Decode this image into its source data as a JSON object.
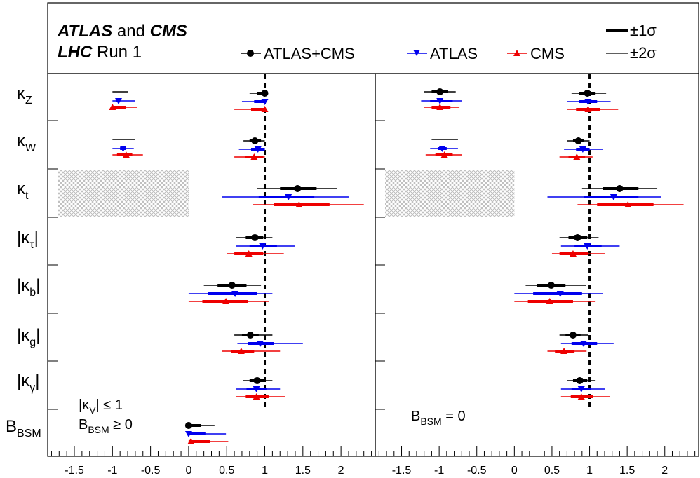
{
  "header": {
    "line1_a": "ATLAS",
    "line1_b": " and ",
    "line1_c": "CMS",
    "line2_a": "LHC",
    "line2_b": " Run 1",
    "legend": {
      "combined": "ATLAS+CMS",
      "atlas": "ATLAS",
      "cms": "CMS",
      "one_sigma": "±1σ",
      "two_sigma": "±2σ"
    }
  },
  "colors": {
    "combined": "#000000",
    "atlas": "#0000ee",
    "cms": "#ee0000",
    "hatch": "#bbbbbb"
  },
  "row_labels": [
    {
      "main": "κ",
      "sub": "Z",
      "abs": false
    },
    {
      "main": "κ",
      "sub": "W",
      "abs": false
    },
    {
      "main": "κ",
      "sub": "t",
      "abs": false
    },
    {
      "main": "κ",
      "sub": "τ",
      "abs": true
    },
    {
      "main": "κ",
      "sub": "b",
      "abs": true
    },
    {
      "main": "κ",
      "sub": "g",
      "abs": true
    },
    {
      "main": "κ",
      "sub": "γ",
      "abs": true
    },
    {
      "main": "B",
      "sub": "BSM",
      "abs": false
    }
  ],
  "panels": [
    {
      "annotation_lines": [
        {
          "pre": "|κ",
          "sub": "V",
          "post": "| ≤ 1"
        },
        {
          "pre": "B",
          "sub": "BSM",
          "post": " ≥ 0"
        }
      ]
    },
    {
      "annotation_lines": [
        {
          "pre": "B",
          "sub": "BSM",
          "post": " = 0"
        }
      ]
    }
  ],
  "chart_data": [
    {
      "type": "scatter",
      "xlim": [
        -1.85,
        2.45
      ],
      "x_ticks": [
        "-1.5",
        "-1",
        "-0.5",
        "0",
        "0.5",
        "1",
        "1.5",
        "2"
      ],
      "x_tick_values": [
        -1.5,
        -1,
        -0.5,
        0,
        0.5,
        1,
        1.5,
        2
      ],
      "reference_line": 1,
      "excluded_band": {
        "row": "kappa_t",
        "x": [
          -1.85,
          0
        ]
      },
      "rows": [
        {
          "param": "kappa_Z",
          "secondary_minimum": {
            "combined": {
              "val": null,
              "s1": null,
              "s2": [
                -1.0,
                -0.8
              ]
            },
            "atlas": {
              "val": -0.92,
              "s1": [
                -0.95,
                -0.9
              ],
              "s2": [
                -1.0,
                -0.7
              ]
            },
            "cms": {
              "val": -1.0,
              "s1": [
                -1.0,
                -0.82
              ],
              "s2": [
                -1.02,
                -0.68
              ]
            }
          },
          "combined": {
            "val": 1.0,
            "s1": [
              0.9,
              1.0
            ],
            "s2": [
              0.8,
              1.0
            ]
          },
          "atlas": {
            "val": 1.0,
            "s1": [
              0.86,
              1.0
            ],
            "s2": [
              0.7,
              1.0
            ]
          },
          "cms": {
            "val": 1.0,
            "s1": [
              0.82,
              1.0
            ],
            "s2": [
              0.6,
              1.0
            ]
          }
        },
        {
          "param": "kappa_W",
          "secondary_minimum": {
            "combined": {
              "val": null,
              "s1": null,
              "s2": [
                -1.0,
                -0.7
              ]
            },
            "atlas": {
              "val": -0.86,
              "s1": [
                -0.9,
                -0.82
              ],
              "s2": [
                -1.0,
                -0.72
              ]
            },
            "cms": {
              "val": -0.82,
              "s1": [
                -0.94,
                -0.74
              ],
              "s2": [
                -1.0,
                -0.6
              ]
            }
          },
          "combined": {
            "val": 0.87,
            "s1": [
              0.8,
              0.95
            ],
            "s2": [
              0.72,
              1.0
            ]
          },
          "atlas": {
            "val": 0.91,
            "s1": [
              0.82,
              1.0
            ],
            "s2": [
              0.66,
              1.0
            ]
          },
          "cms": {
            "val": 0.86,
            "s1": [
              0.74,
              0.98
            ],
            "s2": [
              0.6,
              1.0
            ]
          }
        },
        {
          "param": "kappa_t",
          "combined": {
            "val": 1.43,
            "s1": [
              1.2,
              1.68
            ],
            "s2": [
              0.9,
              1.95
            ]
          },
          "atlas": {
            "val": 1.31,
            "s1": [
              0.92,
              1.65
            ],
            "s2": [
              0.44,
              2.1
            ]
          },
          "cms": {
            "val": 1.45,
            "s1": [
              1.12,
              1.85
            ],
            "s2": [
              0.84,
              2.3
            ]
          }
        },
        {
          "param": "kappa_tau",
          "combined": {
            "val": 0.87,
            "s1": [
              0.75,
              0.98
            ],
            "s2": [
              0.62,
              1.1
            ]
          },
          "atlas": {
            "val": 0.97,
            "s1": [
              0.8,
              1.16
            ],
            "s2": [
              0.62,
              1.4
            ]
          },
          "cms": {
            "val": 0.79,
            "s1": [
              0.6,
              0.98
            ],
            "s2": [
              0.5,
              1.25
            ]
          }
        },
        {
          "param": "kappa_b",
          "combined": {
            "val": 0.57,
            "s1": [
              0.38,
              0.76
            ],
            "s2": [
              0.2,
              0.95
            ]
          },
          "atlas": {
            "val": 0.61,
            "s1": [
              0.25,
              0.9
            ],
            "s2": [
              0.0,
              1.1
            ]
          },
          "cms": {
            "val": 0.49,
            "s1": [
              0.18,
              0.78
            ],
            "s2": [
              0.0,
              1.05
            ]
          }
        },
        {
          "param": "kappa_g",
          "combined": {
            "val": 0.81,
            "s1": [
              0.7,
              0.92
            ],
            "s2": [
              0.6,
              1.1
            ]
          },
          "atlas": {
            "val": 0.94,
            "s1": [
              0.78,
              1.12
            ],
            "s2": [
              0.64,
              1.5
            ]
          },
          "cms": {
            "val": 0.69,
            "s1": [
              0.56,
              0.86
            ],
            "s2": [
              0.44,
              1.2
            ]
          }
        },
        {
          "param": "kappa_gamma",
          "combined": {
            "val": 0.9,
            "s1": [
              0.8,
              1.0
            ],
            "s2": [
              0.71,
              1.1
            ]
          },
          "atlas": {
            "val": 0.89,
            "s1": [
              0.76,
              1.02
            ],
            "s2": [
              0.62,
              1.2
            ]
          },
          "cms": {
            "val": 0.89,
            "s1": [
              0.75,
              1.05
            ],
            "s2": [
              0.62,
              1.27
            ]
          }
        },
        {
          "param": "B_BSM",
          "combined": {
            "val": 0.0,
            "s1": [
              0.0,
              0.16
            ],
            "s2": [
              0.0,
              0.34
            ]
          },
          "atlas": {
            "val": 0.0,
            "s1": [
              0.0,
              0.22
            ],
            "s2": [
              0.0,
              0.49
            ]
          },
          "cms": {
            "val": 0.03,
            "s1": [
              0.0,
              0.28
            ],
            "s2": [
              0.0,
              0.52
            ]
          }
        }
      ]
    },
    {
      "type": "scatter",
      "xlim": [
        -1.85,
        2.45
      ],
      "x_ticks": [
        "-1.5",
        "-1",
        "-0.5",
        "0",
        "0.5",
        "1",
        "1.5",
        "2"
      ],
      "x_tick_values": [
        -1.5,
        -1,
        -0.5,
        0,
        0.5,
        1,
        1.5,
        2
      ],
      "reference_line": 1,
      "excluded_band": {
        "row": "kappa_t",
        "x": [
          -1.85,
          0
        ]
      },
      "rows": [
        {
          "param": "kappa_Z",
          "secondary_minimum": {
            "combined": {
              "val": -0.99,
              "s1": [
                -1.1,
                -0.88
              ],
              "s2": [
                -1.2,
                -0.78
              ]
            },
            "atlas": {
              "val": -0.99,
              "s1": [
                -1.12,
                -0.82
              ],
              "s2": [
                -1.24,
                -0.7
              ]
            },
            "cms": {
              "val": -0.99,
              "s1": [
                -1.1,
                -0.85
              ],
              "s2": [
                -1.2,
                -0.73
              ]
            }
          },
          "combined": {
            "val": 0.97,
            "s1": [
              0.86,
              1.08
            ],
            "s2": [
              0.76,
              1.22
            ]
          },
          "atlas": {
            "val": 0.98,
            "s1": [
              0.86,
              1.1
            ],
            "s2": [
              0.7,
              1.28
            ]
          },
          "cms": {
            "val": 0.98,
            "s1": [
              0.82,
              1.14
            ],
            "s2": [
              0.7,
              1.38
            ]
          }
        },
        {
          "param": "kappa_W",
          "secondary_minimum": {
            "combined": {
              "val": null,
              "s1": null,
              "s2": [
                -1.1,
                -0.75
              ]
            },
            "atlas": {
              "val": -0.96,
              "s1": [
                -1.02,
                -0.9
              ],
              "s2": [
                -1.12,
                -0.75
              ]
            },
            "cms": {
              "val": -0.93,
              "s1": [
                -1.05,
                -0.82
              ],
              "s2": [
                -1.18,
                -0.7
              ]
            }
          },
          "combined": {
            "val": 0.85,
            "s1": [
              0.78,
              0.92
            ],
            "s2": [
              0.7,
              1.0
            ]
          },
          "atlas": {
            "val": 0.91,
            "s1": [
              0.82,
              1.0
            ],
            "s2": [
              0.66,
              1.18
            ]
          },
          "cms": {
            "val": 0.83,
            "s1": [
              0.72,
              0.94
            ],
            "s2": [
              0.6,
              1.04
            ]
          }
        },
        {
          "param": "kappa_t",
          "combined": {
            "val": 1.4,
            "s1": [
              1.18,
              1.65
            ],
            "s2": [
              0.9,
              1.9
            ]
          },
          "atlas": {
            "val": 1.32,
            "s1": [
              0.92,
              1.65
            ],
            "s2": [
              0.44,
              1.95
            ]
          },
          "cms": {
            "val": 1.51,
            "s1": [
              1.1,
              1.85
            ],
            "s2": [
              0.84,
              2.25
            ]
          }
        },
        {
          "param": "kappa_tau",
          "combined": {
            "val": 0.84,
            "s1": [
              0.72,
              0.97
            ],
            "s2": [
              0.6,
              1.12
            ]
          },
          "atlas": {
            "val": 0.97,
            "s1": [
              0.8,
              1.16
            ],
            "s2": [
              0.62,
              1.4
            ]
          },
          "cms": {
            "val": 0.78,
            "s1": [
              0.6,
              0.98
            ],
            "s2": [
              0.5,
              1.2
            ]
          }
        },
        {
          "param": "kappa_b",
          "combined": {
            "val": 0.49,
            "s1": [
              0.3,
              0.68
            ],
            "s2": [
              0.15,
              0.95
            ]
          },
          "atlas": {
            "val": 0.61,
            "s1": [
              0.25,
              0.9
            ],
            "s2": [
              0.0,
              1.18
            ]
          },
          "cms": {
            "val": 0.47,
            "s1": [
              0.18,
              0.78
            ],
            "s2": [
              0.0,
              1.08
            ]
          }
        },
        {
          "param": "kappa_g",
          "combined": {
            "val": 0.78,
            "s1": [
              0.68,
              0.88
            ],
            "s2": [
              0.6,
              0.98
            ]
          },
          "atlas": {
            "val": 0.92,
            "s1": [
              0.76,
              1.1
            ],
            "s2": [
              0.62,
              1.32
            ]
          },
          "cms": {
            "val": 0.66,
            "s1": [
              0.54,
              0.8
            ],
            "s2": [
              0.44,
              0.96
            ]
          }
        },
        {
          "param": "kappa_gamma",
          "combined": {
            "val": 0.87,
            "s1": [
              0.78,
              0.97
            ],
            "s2": [
              0.7,
              1.08
            ]
          },
          "atlas": {
            "val": 0.89,
            "s1": [
              0.76,
              1.02
            ],
            "s2": [
              0.62,
              1.2
            ]
          },
          "cms": {
            "val": 0.89,
            "s1": [
              0.75,
              1.05
            ],
            "s2": [
              0.62,
              1.27
            ]
          }
        }
      ]
    }
  ]
}
